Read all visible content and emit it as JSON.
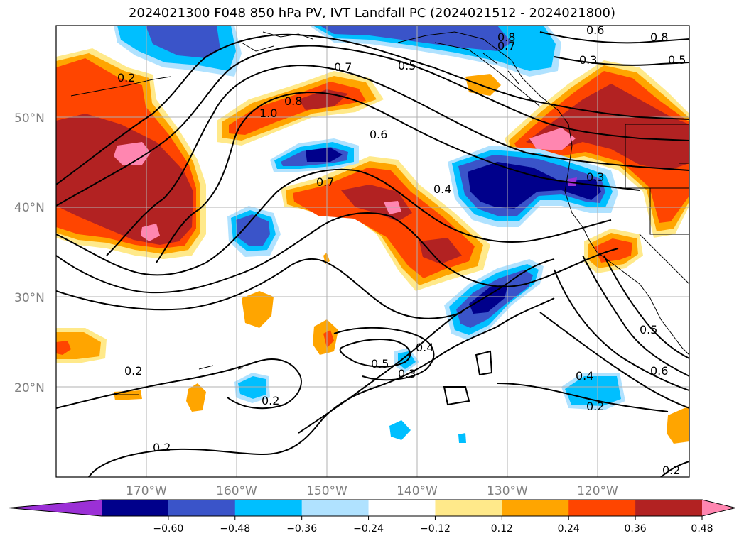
{
  "title": "2024021300 F048 850 hPa PV, IVT Landfall PC (2024021512 - 2024021800)",
  "lat_labels": [
    "50°N",
    "40°N",
    "30°N",
    "20°N"
  ],
  "lon_labels": [
    "170°W",
    "160°W",
    "150°W",
    "140°W",
    "130°W",
    "120°W"
  ],
  "colorbar": {
    "ticks": [
      "−0.60",
      "−0.48",
      "−0.36",
      "−0.24",
      "−0.12",
      "0.12",
      "0.24",
      "0.36",
      "0.48",
      "0.60"
    ],
    "colors": [
      "#9b30d6",
      "#00008b",
      "#3a54c9",
      "#00bfff",
      "#b0e2ff",
      "#ffffff",
      "#ffe98a",
      "#ffa500",
      "#ff4500",
      "#b22222",
      "#ff86b0"
    ]
  },
  "contour_labels": [
    "0.8",
    "0.7",
    "0.6",
    "0.8",
    "0.5",
    "0.7",
    "0.5",
    "0.3",
    "0.2",
    "1.0",
    "0.8",
    "0.6",
    "0.7",
    "0.4",
    "0.3",
    "0.2",
    "0.5",
    "0.4",
    "0.3",
    "0.2",
    "0.5",
    "0.6",
    "0.4",
    "0.2",
    "0.2",
    "0.2"
  ]
}
